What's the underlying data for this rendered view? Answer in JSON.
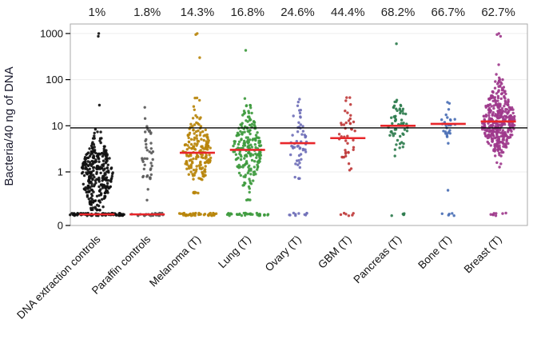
{
  "figure": {
    "ylabel": "Bacteria/40 ng of DNA"
  },
  "chart_data": {
    "type": "scatter",
    "subtype": "beeswarm",
    "title": "",
    "ylabel": "Bacteria/40 ng of DNA",
    "xlabel": "",
    "y_scale": "log",
    "y_tick_labels": [
      "1000",
      "100",
      "10",
      "1",
      "0"
    ],
    "y_tick_values": [
      1000,
      100,
      10,
      1,
      0
    ],
    "ylim": [
      0.07,
      1500
    ],
    "threshold_line_value": 9,
    "threshold_line_color": "#000000",
    "floor_value": 0.12,
    "median_line_color": "#e8262a",
    "grid": "faint-horizontal",
    "legend": "none",
    "groups": [
      {
        "label": "DNA extraction controls",
        "percent_above": "1%",
        "color": "#111111",
        "median": 0.12,
        "n_main": 300,
        "n_floor": 90,
        "log_center": -0.05,
        "log_sd": 0.42,
        "log_min": -0.82,
        "log_max": 0.95,
        "half_width": 20,
        "floor_half_width": 34,
        "outliers": [
          28,
          870,
          1000
        ]
      },
      {
        "label": "Paraffin controls",
        "percent_above": "1.8%",
        "color": "#5a5a5a",
        "median": 0.12,
        "n_main": 40,
        "n_floor": 28,
        "log_center": 0.35,
        "log_sd": 0.45,
        "log_min": -0.6,
        "log_max": 1.15,
        "half_width": 8,
        "floor_half_width": 20,
        "outliers": [
          25
        ]
      },
      {
        "label": "Melanoma (T)",
        "percent_above": "14.3%",
        "color": "#b8860b",
        "median": 2.6,
        "n_main": 190,
        "n_floor": 40,
        "log_center": 0.42,
        "log_sd": 0.4,
        "log_min": -0.45,
        "log_max": 1.6,
        "half_width": 18,
        "floor_half_width": 26,
        "outliers": [
          300,
          950,
          1000
        ]
      },
      {
        "label": "Lung (T)",
        "percent_above": "16.8%",
        "color": "#3f9b3f",
        "median": 3.0,
        "n_main": 210,
        "n_floor": 35,
        "log_center": 0.48,
        "log_sd": 0.42,
        "log_min": -0.6,
        "log_max": 1.85,
        "half_width": 18,
        "floor_half_width": 26,
        "outliers": [
          430
        ]
      },
      {
        "label": "Ovary (T)",
        "percent_above": "24.6%",
        "color": "#7070b8",
        "median": 4.2,
        "n_main": 55,
        "n_floor": 10,
        "log_center": 0.62,
        "log_sd": 0.38,
        "log_min": -0.15,
        "log_max": 1.75,
        "half_width": 12,
        "floor_half_width": 12,
        "outliers": []
      },
      {
        "label": "GBM (T)",
        "percent_above": "44.4%",
        "color": "#bf3b3b",
        "median": 5.4,
        "n_main": 42,
        "n_floor": 6,
        "log_center": 0.74,
        "log_sd": 0.4,
        "log_min": -0.1,
        "log_max": 2.0,
        "half_width": 11,
        "floor_half_width": 10,
        "outliers": []
      },
      {
        "label": "Pancreas (T)",
        "percent_above": "68.2%",
        "color": "#2f7d4f",
        "median": 10,
        "n_main": 58,
        "n_floor": 5,
        "log_center": 1.0,
        "log_sd": 0.33,
        "log_min": 0.35,
        "log_max": 2.0,
        "half_width": 12,
        "floor_half_width": 8,
        "outliers": [
          600
        ]
      },
      {
        "label": "Bone (T)",
        "percent_above": "66.7%",
        "color": "#4a6fb5",
        "median": 11,
        "n_main": 26,
        "n_floor": 5,
        "log_center": 1.04,
        "log_sd": 0.27,
        "log_min": 0.55,
        "log_max": 1.6,
        "half_width": 10,
        "floor_half_width": 8,
        "outliers": [
          0.4
        ]
      },
      {
        "label": "Breast (T)",
        "percent_above": "62.7%",
        "color": "#9e3a8c",
        "median": 12.4,
        "n_main": 380,
        "n_floor": 8,
        "log_center": 1.1,
        "log_sd": 0.38,
        "log_min": -0.15,
        "log_max": 2.35,
        "half_width": 22,
        "floor_half_width": 10,
        "outliers": [
          870,
          950,
          1000
        ]
      }
    ]
  }
}
